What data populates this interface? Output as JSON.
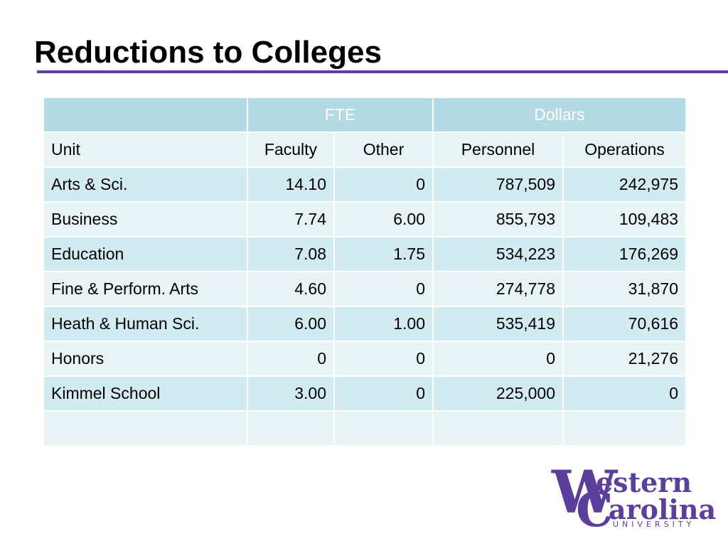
{
  "slide": {
    "title": "Reductions to Colleges"
  },
  "table": {
    "groups": {
      "blank": "",
      "fte": "FTE",
      "dollars": "Dollars"
    },
    "headers": [
      "Unit",
      "Faculty",
      "Other",
      "Personnel",
      "Operations"
    ],
    "rows": [
      [
        "Arts & Sci.",
        "14.10",
        "0",
        "787,509",
        "242,975"
      ],
      [
        "Business",
        "7.74",
        "6.00",
        "855,793",
        "109,483"
      ],
      [
        "Education",
        "7.08",
        "1.75",
        "534,223",
        "176,269"
      ],
      [
        "Fine & Perform. Arts",
        "4.60",
        "0",
        "274,778",
        "31,870"
      ],
      [
        "Heath & Human Sci.",
        "6.00",
        "1.00",
        "535,419",
        "70,616"
      ],
      [
        "Honors",
        "0",
        "0",
        "0",
        "21,276"
      ],
      [
        "Kimmel School",
        "3.00",
        "0",
        "225,000",
        "0"
      ],
      [
        "",
        "",
        "",
        "",
        ""
      ]
    ]
  },
  "logo": {
    "line1_initial": "W",
    "line1_rest": "estern",
    "line2_initial": "C",
    "line2_rest": "arolina",
    "line3": "UNIVERSITY"
  },
  "colors": {
    "accent_purple": "#5c3f9c",
    "header_teal": "#b3dae3",
    "row_light": "#e8f3f5",
    "row_alt": "#d2ebf0"
  }
}
